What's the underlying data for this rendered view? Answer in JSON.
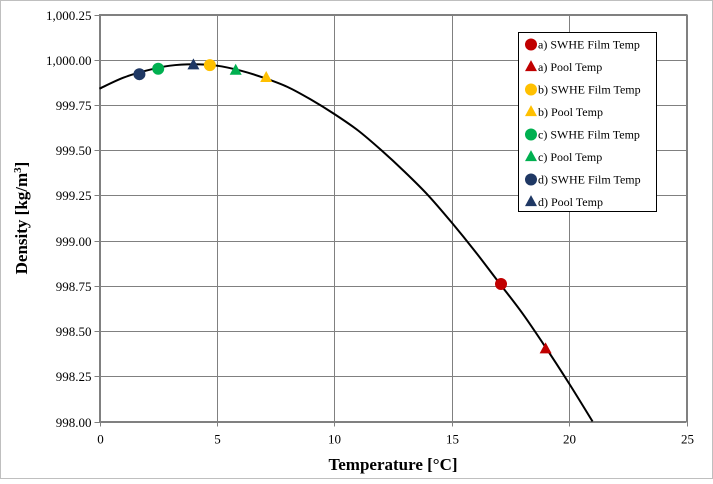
{
  "chart_data": {
    "type": "scatter",
    "xlabel": "Temperature [°C]",
    "ylabel_main": "Density [kg/m",
    "ylabel_sup": "3",
    "ylabel_end": "]",
    "xlim": [
      0,
      25
    ],
    "ylim": [
      998.0,
      1000.25
    ],
    "x_ticks": [
      0,
      5,
      10,
      15,
      20,
      25
    ],
    "y_ticks": [
      998.0,
      998.25,
      998.5,
      998.75,
      999.0,
      999.25,
      999.5,
      999.75,
      1000.0,
      1000.25
    ],
    "x_tick_labels": [
      "0",
      "5",
      "10",
      "15",
      "20",
      "25"
    ],
    "y_tick_labels": [
      "998.00",
      "998.25",
      "998.50",
      "998.75",
      "999.00",
      "999.25",
      "999.50",
      "999.75",
      "1,000.00",
      "1,000.25"
    ],
    "grid": true,
    "legend_position": "top-right",
    "curve": {
      "x": [
        0,
        1,
        2,
        3,
        4,
        5,
        6,
        7,
        8,
        9,
        10,
        11,
        12,
        13,
        14,
        15,
        16,
        17,
        18,
        19,
        20,
        21
      ],
      "y": [
        999.84,
        999.9,
        999.94,
        999.967,
        999.975,
        999.967,
        999.94,
        999.9,
        999.85,
        999.78,
        999.7,
        999.61,
        999.5,
        999.38,
        999.25,
        999.1,
        998.94,
        998.77,
        998.6,
        998.41,
        998.21,
        998.0
      ],
      "color": "#000000"
    },
    "series": [
      {
        "name": "a) SWHE Film Temp",
        "marker": "circle",
        "color": "#c00000",
        "x": 17.1,
        "y": 998.76
      },
      {
        "name": "a) Pool Temp",
        "marker": "triangle",
        "color": "#c00000",
        "x": 19.0,
        "y": 998.4
      },
      {
        "name": "b) SWHE Film Temp",
        "marker": "circle",
        "color": "#ffc000",
        "x": 4.7,
        "y": 999.97
      },
      {
        "name": "b) Pool Temp",
        "marker": "triangle",
        "color": "#ffc000",
        "x": 7.1,
        "y": 999.9
      },
      {
        "name": "c) SWHE Film Temp",
        "marker": "circle",
        "color": "#00b050",
        "x": 2.5,
        "y": 999.95
      },
      {
        "name": "c) Pool Temp",
        "marker": "triangle",
        "color": "#00b050",
        "x": 5.8,
        "y": 999.94
      },
      {
        "name": "d) SWHE Film Temp",
        "marker": "circle",
        "color": "#1f3864",
        "x": 1.7,
        "y": 999.92
      },
      {
        "name": "d) Pool Temp",
        "marker": "triangle",
        "color": "#1f3864",
        "x": 4.0,
        "y": 999.97
      }
    ]
  }
}
